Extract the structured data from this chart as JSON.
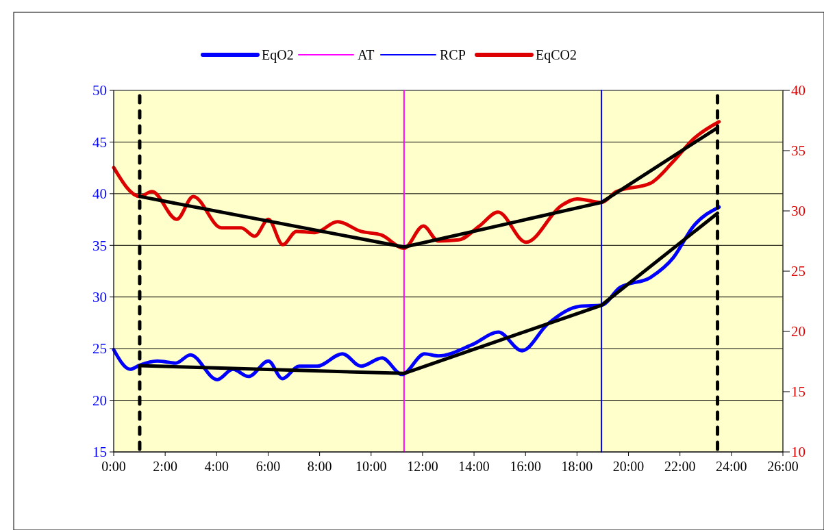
{
  "chart_data": {
    "type": "line",
    "xlim": [
      0,
      26
    ],
    "xticks": [
      {
        "value": 0,
        "label": "0:00"
      },
      {
        "value": 2,
        "label": "2:00"
      },
      {
        "value": 4,
        "label": "4:00"
      },
      {
        "value": 6,
        "label": "6:00"
      },
      {
        "value": 8,
        "label": "8:00"
      },
      {
        "value": 10,
        "label": "10:00"
      },
      {
        "value": 12,
        "label": "12:00"
      },
      {
        "value": 14,
        "label": "14:00"
      },
      {
        "value": 16,
        "label": "16:00"
      },
      {
        "value": 18,
        "label": "18:00"
      },
      {
        "value": 20,
        "label": "20:00"
      },
      {
        "value": 22,
        "label": "22:00"
      },
      {
        "value": 24,
        "label": "24:00"
      },
      {
        "value": 26,
        "label": "26:00"
      }
    ],
    "ylim": [
      15,
      50
    ],
    "yticks": [
      15,
      20,
      25,
      30,
      35,
      40,
      45,
      50
    ],
    "y2lim": [
      10,
      40
    ],
    "y2ticks": [
      10,
      15,
      20,
      25,
      30,
      35,
      40
    ],
    "grid": "y",
    "legend": "top",
    "marker": "none",
    "line_style": "solid",
    "series": [
      {
        "name": "EqO2",
        "color": "#0000ff",
        "x": [
          0,
          0.64,
          1.01,
          1.7,
          2.42,
          2.98,
          4.02,
          4.63,
          5.24,
          6.01,
          6.55,
          7.21,
          7.9,
          8.89,
          9.61,
          10.43,
          11.2,
          12.08,
          12.61,
          13.94,
          14.95,
          15.86,
          16.87,
          18.12,
          18.95,
          19.66,
          20.86,
          21.74,
          22.54,
          23.52
        ],
        "values": [
          24.9,
          23.0,
          23.4,
          23.8,
          23.6,
          24.4,
          22.0,
          23.0,
          22.3,
          23.8,
          22.1,
          23.3,
          23.3,
          24.5,
          23.3,
          24.1,
          22.5,
          24.5,
          24.3,
          25.4,
          26.6,
          24.8,
          27.4,
          29.1,
          29.2,
          30.9,
          31.9,
          33.8,
          36.9,
          38.7
        ]
      },
      {
        "name": "EqCO2",
        "color": "#dd0000",
        "axis": "y2",
        "x": [
          0,
          1.01,
          1.49,
          2.45,
          3.09,
          4.18,
          4.95,
          5.48,
          6.01,
          6.57,
          7.1,
          7.82,
          8.7,
          9.61,
          10.4,
          11.28,
          12.03,
          12.61,
          13.41,
          14.21,
          14.93,
          16.02,
          17.4,
          18.01,
          18.95,
          19.53,
          20.86,
          21.74,
          22.54,
          23.52
        ],
        "values": [
          33.6,
          31.2,
          31.6,
          29.3,
          31.2,
          28.6,
          28.6,
          27.9,
          29.3,
          27.2,
          28.3,
          28.2,
          29.1,
          28.3,
          28.0,
          26.9,
          28.75,
          27.5,
          27.6,
          28.75,
          29.9,
          27.4,
          30.45,
          31.0,
          30.7,
          31.6,
          32.3,
          34.1,
          36.0,
          37.4
        ]
      },
      {
        "color": "#000000",
        "x": [
          1.01,
          11.28,
          18.95,
          23.46
        ],
        "values": [
          23.35,
          22.6,
          29.2,
          38.1
        ]
      },
      {
        "color": "#000000",
        "axis": "y2",
        "x": [
          1.01,
          11.28,
          18.95,
          23.46
        ],
        "values": [
          31.2,
          27.0,
          30.7,
          36.9
        ]
      }
    ],
    "ref_lines": [
      {
        "axis": "x",
        "value": 11.28,
        "label": "AT",
        "color": "#ff00ff",
        "line_style": "solid"
      },
      {
        "axis": "x",
        "value": 18.95,
        "label": "RCP",
        "color": "#0000ff",
        "line_style": "solid"
      },
      {
        "axis": "x",
        "value": 1.01,
        "color": "#000000",
        "line_style": "dashed"
      },
      {
        "axis": "x",
        "value": 23.46,
        "color": "#000000",
        "line_style": "dashed"
      }
    ]
  }
}
